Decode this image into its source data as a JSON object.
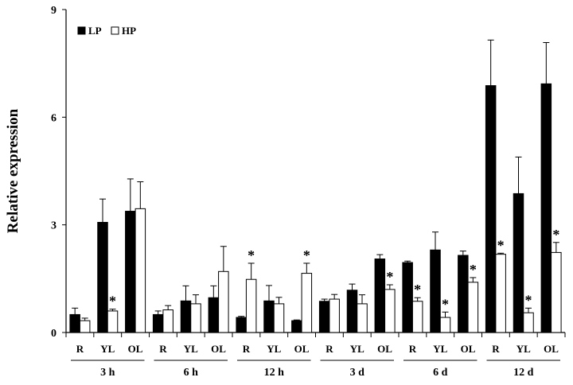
{
  "chart_data": {
    "type": "bar",
    "ylabel": "Relative expression",
    "ylim": [
      0,
      9
    ],
    "yticks": [
      "0",
      "3",
      "6",
      "9"
    ],
    "legend_position": "top-left",
    "tissues": [
      "R",
      "YL",
      "OL"
    ],
    "groups": [
      "3 h",
      "6 h",
      "12 h",
      "3 d",
      "6 d",
      "12 d"
    ],
    "series": [
      {
        "name": "LP",
        "color": "#000000",
        "values": [
          0.5,
          3.07,
          3.38,
          0.5,
          0.88,
          0.97,
          0.42,
          0.88,
          0.33,
          0.87,
          1.18,
          2.05,
          1.95,
          2.3,
          2.15,
          6.88,
          3.87,
          6.93
        ],
        "errors": [
          0.18,
          0.65,
          0.9,
          0.1,
          0.42,
          0.33,
          0.03,
          0.43,
          0.02,
          0.06,
          0.17,
          0.12,
          0.04,
          0.5,
          0.12,
          1.27,
          1.02,
          1.15
        ]
      },
      {
        "name": "HP",
        "color": "#ffffff",
        "values": [
          0.33,
          0.6,
          3.45,
          0.63,
          0.8,
          1.7,
          1.48,
          0.8,
          1.65,
          0.93,
          0.8,
          1.2,
          0.87,
          0.42,
          1.4,
          2.18,
          0.55,
          2.23
        ],
        "errors": [
          0.07,
          0.05,
          0.75,
          0.12,
          0.25,
          0.7,
          0.45,
          0.18,
          0.28,
          0.13,
          0.25,
          0.13,
          0.1,
          0.15,
          0.13,
          0.03,
          0.13,
          0.28
        ]
      }
    ],
    "significance": [
      "",
      "*",
      "",
      "",
      "",
      "",
      "*",
      "",
      "*",
      "",
      "",
      "*",
      "*",
      "*",
      "*",
      "*",
      "*",
      "*"
    ],
    "grid": false
  }
}
